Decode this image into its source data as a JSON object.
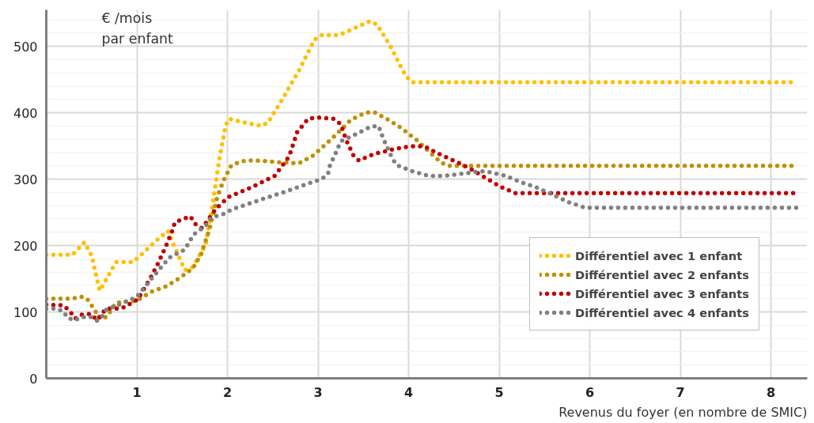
{
  "chart_data": {
    "type": "line",
    "ylabel": "€ /mois\npar enfant",
    "xlabel": "Revenus du foyer (en nombre de SMIC)",
    "xlim": [
      0,
      8.4
    ],
    "ylim": [
      0,
      555
    ],
    "xticks": [
      1,
      2,
      3,
      4,
      5,
      6,
      7,
      8
    ],
    "yticks": [
      0,
      100,
      200,
      300,
      400,
      500
    ],
    "grid": true,
    "legend": "bottom right",
    "line_style": "dotted",
    "marker": "none",
    "series": [
      {
        "name": "Différentiel avec 1 enfant",
        "color": "#ffc000",
        "x": [
          0,
          0.29,
          0.42,
          0.5,
          0.59,
          0.77,
          0.96,
          1.22,
          1.34,
          1.49,
          1.53,
          1.62,
          1.76,
          1.84,
          1.91,
          1.98,
          2.02,
          2.1,
          2.38,
          2.45,
          2.6,
          2.79,
          2.96,
          3.04,
          3.23,
          3.4,
          3.57,
          3.65,
          3.8,
          3.93,
          3.98,
          4.04,
          8.25
        ],
        "values": [
          186,
          186,
          205,
          185,
          132,
          175,
          175,
          208,
          222,
          175,
          163,
          168,
          202,
          265,
          330,
          381,
          391,
          388,
          380,
          386,
          419,
          464,
          510,
          517,
          517,
          527,
          538,
          533,
          500,
          465,
          454,
          446,
          446
        ]
      },
      {
        "name": "Différentiel avec 2 enfants",
        "color": "#bf9000",
        "x": [
          0,
          0.29,
          0.38,
          0.45,
          0.5,
          0.6,
          0.67,
          0.77,
          1.0,
          1.17,
          1.33,
          1.47,
          1.62,
          1.71,
          1.74,
          1.8,
          1.89,
          1.96,
          2.04,
          2.13,
          2.21,
          2.33,
          2.61,
          2.79,
          2.95,
          3.16,
          3.36,
          3.52,
          3.62,
          3.77,
          3.93,
          4.0,
          4.08,
          4.22,
          4.36,
          4.44,
          8.25
        ],
        "values": [
          120,
          120,
          123,
          120,
          110,
          89,
          93,
          114,
          117,
          131,
          139,
          151,
          166,
          187,
          200,
          224,
          274,
          299,
          320,
          326,
          328,
          328,
          325,
          324,
          336,
          362,
          389,
          400,
          401,
          390,
          376,
          368,
          360,
          342,
          325,
          320,
          320
        ]
      },
      {
        "name": "Différentiel avec 3 enfants",
        "color": "#c00000",
        "x": [
          0,
          0.19,
          0.26,
          0.32,
          0.39,
          0.49,
          0.56,
          0.66,
          0.83,
          1.01,
          1.15,
          1.24,
          1.32,
          1.39,
          1.42,
          1.51,
          1.59,
          1.64,
          1.72,
          1.87,
          2.01,
          2.27,
          2.52,
          2.68,
          2.77,
          2.89,
          2.98,
          3.17,
          3.25,
          3.31,
          3.39,
          3.45,
          3.62,
          3.8,
          3.99,
          4.08,
          4.18,
          4.35,
          4.53,
          4.69,
          4.86,
          5.02,
          5.18,
          8.25
        ],
        "values": [
          111,
          110,
          101,
          90,
          96,
          97,
          88,
          105,
          105,
          119,
          151,
          175,
          199,
          222,
          235,
          240,
          244,
          233,
          226,
          255,
          273,
          288,
          305,
          334,
          371,
          391,
          393,
          391,
          383,
          359,
          336,
          328,
          338,
          344,
          349,
          350,
          349,
          337,
          326,
          315,
          301,
          288,
          279,
          279
        ]
      },
      {
        "name": "Différentiel avec 4 enfants",
        "color": "#808080",
        "x": [
          0,
          0.1,
          0.19,
          0.23,
          0.31,
          0.39,
          0.48,
          0.56,
          0.61,
          0.66,
          0.82,
          0.92,
          1.0,
          1.12,
          1.24,
          1.36,
          1.53,
          1.58,
          1.63,
          1.76,
          1.82,
          1.97,
          2.04,
          2.32,
          2.59,
          2.86,
          3.04,
          3.11,
          3.13,
          3.17,
          3.21,
          3.25,
          3.42,
          3.58,
          3.67,
          3.7,
          3.74,
          3.82,
          3.87,
          4.04,
          4.22,
          4.39,
          4.52,
          4.69,
          4.79,
          4.88,
          5.07,
          5.25,
          5.42,
          5.6,
          5.77,
          5.95,
          8.33
        ],
        "values": [
          105,
          105,
          101,
          92,
          87,
          92,
          93,
          87,
          92,
          103,
          112,
          118,
          123,
          143,
          163,
          182,
          194,
          206,
          217,
          230,
          242,
          248,
          254,
          267,
          279,
          292,
          300,
          308,
          320,
          332,
          344,
          357,
          368,
          379,
          380,
          368,
          355,
          331,
          321,
          312,
          305,
          305,
          307,
          310,
          312,
          311,
          305,
          295,
          287,
          276,
          265,
          257,
          257
        ]
      }
    ]
  }
}
